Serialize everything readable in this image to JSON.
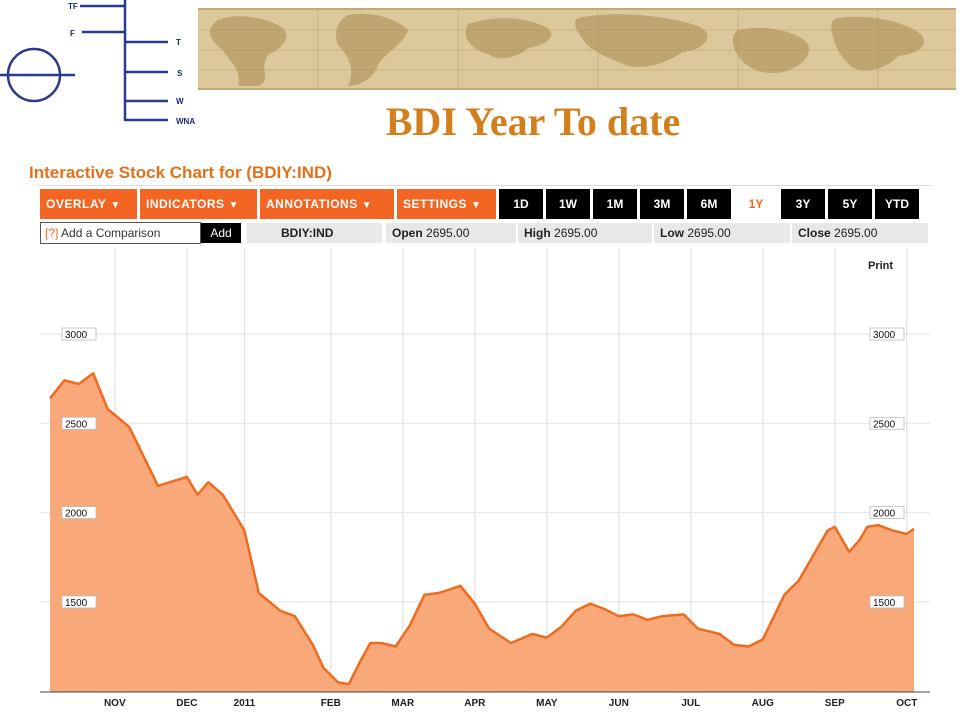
{
  "slide": {
    "title": "BDI Year To date",
    "logo_labels": [
      "TF",
      "F",
      "T",
      "S",
      "W",
      "WNA"
    ]
  },
  "widget": {
    "title": "Interactive Stock Chart for (BDIY:IND)",
    "menus": [
      {
        "label": "OVERLAY",
        "caret": "▼"
      },
      {
        "label": "INDICATORS",
        "caret": "▼"
      },
      {
        "label": "ANNOTATIONS",
        "caret": "▼"
      },
      {
        "label": "SETTINGS",
        "caret": "▼"
      }
    ],
    "ranges": [
      "1D",
      "1W",
      "1M",
      "3M",
      "6M",
      "1Y",
      "3Y",
      "5Y",
      "YTD"
    ],
    "active_range": "1Y",
    "compare": {
      "help": "[?]",
      "placeholder": "Add a Comparison",
      "add_label": "Add"
    },
    "quote": {
      "symbol": "BDIY:IND",
      "open_label": "Open",
      "open_value": "2695.00",
      "high_label": "High",
      "high_value": "2695.00",
      "low_label": "Low",
      "low_value": "2695.00",
      "close_label": "Close",
      "close_value": "2695.00"
    },
    "print_label": "Print"
  },
  "colors": {
    "accent": "#f26522",
    "line": "#ef6b1f",
    "fill": "#f9a87a",
    "title": "#d2801e",
    "toolbar_dark": "#000000"
  },
  "chart_data": {
    "type": "area",
    "title": "",
    "xlabel": "",
    "ylabel": "",
    "ylim": [
      1000,
      3000
    ],
    "yticks": [
      3000,
      2500,
      2000,
      1500
    ],
    "x_tick_labels": [
      "NOV",
      "DEC",
      "2011",
      "FEB",
      "MAR",
      "APR",
      "MAY",
      "JUN",
      "JUL",
      "AUG",
      "SEP",
      "OCT"
    ],
    "x_tick_positions": [
      1,
      2,
      2.8,
      4,
      5,
      6,
      7,
      8,
      9,
      10,
      11,
      12
    ],
    "xlim": [
      0.1,
      12.1
    ],
    "grid": true,
    "series": [
      {
        "x": [
          0.1,
          0.3,
          0.5,
          0.7,
          0.9,
          1.2,
          1.6,
          2.0,
          2.15,
          2.3,
          2.5,
          2.8,
          3.0,
          3.3,
          3.5,
          3.75,
          3.9,
          4.1,
          4.25,
          4.4,
          4.55,
          4.7,
          4.9,
          5.1,
          5.3,
          5.5,
          5.8,
          6.0,
          6.2,
          6.5,
          6.8,
          7.0,
          7.2,
          7.4,
          7.6,
          7.8,
          8.0,
          8.2,
          8.4,
          8.6,
          8.9,
          9.1,
          9.4,
          9.6,
          9.8,
          10.0,
          10.3,
          10.5,
          10.7,
          10.9,
          11.0,
          11.2,
          11.35,
          11.45,
          11.6,
          11.8,
          12.0,
          12.1
        ],
        "y": [
          2640,
          2740,
          2720,
          2780,
          2580,
          2480,
          2150,
          2200,
          2100,
          2170,
          2100,
          1900,
          1550,
          1450,
          1420,
          1260,
          1130,
          1050,
          1040,
          1160,
          1270,
          1270,
          1250,
          1370,
          1540,
          1550,
          1590,
          1490,
          1350,
          1270,
          1320,
          1300,
          1360,
          1450,
          1490,
          1460,
          1420,
          1430,
          1400,
          1420,
          1430,
          1350,
          1320,
          1260,
          1250,
          1290,
          1540,
          1620,
          1760,
          1900,
          1920,
          1780,
          1850,
          1920,
          1930,
          1900,
          1880,
          1910
        ]
      }
    ]
  }
}
